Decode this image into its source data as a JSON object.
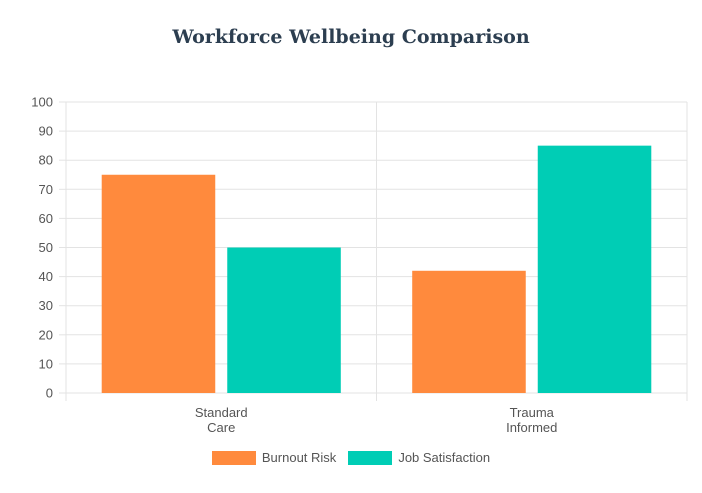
{
  "chart_data": {
    "type": "bar",
    "title": "Workforce Wellbeing Comparison",
    "categories": [
      [
        "Standard",
        "Care"
      ],
      [
        "Trauma",
        "Informed"
      ]
    ],
    "series": [
      {
        "name": "Burnout Risk",
        "values": [
          75,
          42
        ],
        "color": "#ff8a3d"
      },
      {
        "name": "Job Satisfaction",
        "values": [
          50,
          85
        ],
        "color": "#00cdb5"
      }
    ],
    "xlabel": "",
    "ylabel": "",
    "ylim": [
      0,
      100
    ],
    "yticks": [
      "0",
      "10",
      "20",
      "30",
      "40",
      "50",
      "60",
      "70",
      "80",
      "90",
      "100"
    ],
    "grid": true,
    "legend_position": "bottom"
  }
}
